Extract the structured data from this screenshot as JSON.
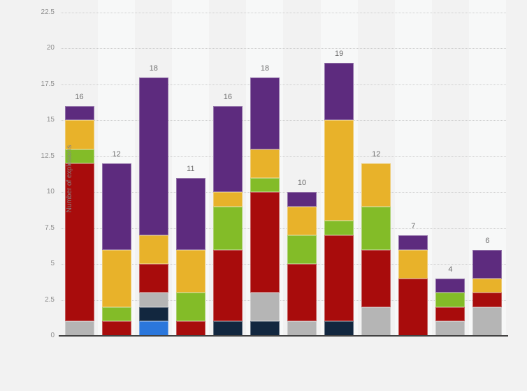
{
  "chart": {
    "background_color": "#f2f2f2",
    "band_light_color": "#f7f8f8",
    "grid_color": "#cdcdcd",
    "axis_color": "#424242",
    "tick_label_color": "#8d8d8d",
    "value_label_color": "#6e6e6e"
  },
  "chart_data": {
    "type": "bar",
    "stacked": true,
    "title": "",
    "xlabel": "",
    "ylabel": "Number of explosions",
    "ylim": [
      0,
      22.5
    ],
    "ytick_labels": [
      "0",
      "2.5",
      "5",
      "7.5",
      "10",
      "12.5",
      "15",
      "17.5",
      "20",
      "22.5"
    ],
    "ytick_values": [
      0,
      2.5,
      5,
      7.5,
      10,
      12.5,
      15,
      17.5,
      20,
      22.5
    ],
    "grid": "horizontal-dotted",
    "legend": "none",
    "x_axis_labels_visible": false,
    "bar_count": 12,
    "bar_totals": [
      16,
      12,
      18,
      11,
      16,
      18,
      10,
      19,
      12,
      7,
      4,
      6
    ],
    "series": [
      {
        "name": "blue",
        "color": "#2b77dc",
        "values": [
          0,
          0,
          1,
          0,
          0,
          0,
          0,
          0,
          0,
          0,
          0,
          0
        ]
      },
      {
        "name": "dark-navy",
        "color": "#12273f",
        "values": [
          0,
          0,
          1,
          0,
          1,
          1,
          0,
          1,
          0,
          0,
          0,
          0
        ]
      },
      {
        "name": "gray",
        "color": "#b5b5b5",
        "values": [
          1,
          0,
          1,
          0,
          0,
          2,
          1,
          0,
          2,
          0,
          1,
          2
        ]
      },
      {
        "name": "red",
        "color": "#a80c0c",
        "values": [
          11,
          1,
          2,
          1,
          5,
          7,
          4,
          6,
          4,
          4,
          1,
          1
        ]
      },
      {
        "name": "green",
        "color": "#83bc28",
        "values": [
          1,
          1,
          0,
          2,
          3,
          1,
          2,
          1,
          3,
          0,
          1,
          0
        ]
      },
      {
        "name": "yellow",
        "color": "#e8b22a",
        "values": [
          2,
          4,
          2,
          3,
          1,
          2,
          2,
          7,
          3,
          2,
          0,
          1
        ]
      },
      {
        "name": "purple",
        "color": "#5d2b7e",
        "values": [
          1,
          6,
          11,
          5,
          6,
          5,
          1,
          4,
          0,
          1,
          1,
          2
        ]
      }
    ]
  }
}
